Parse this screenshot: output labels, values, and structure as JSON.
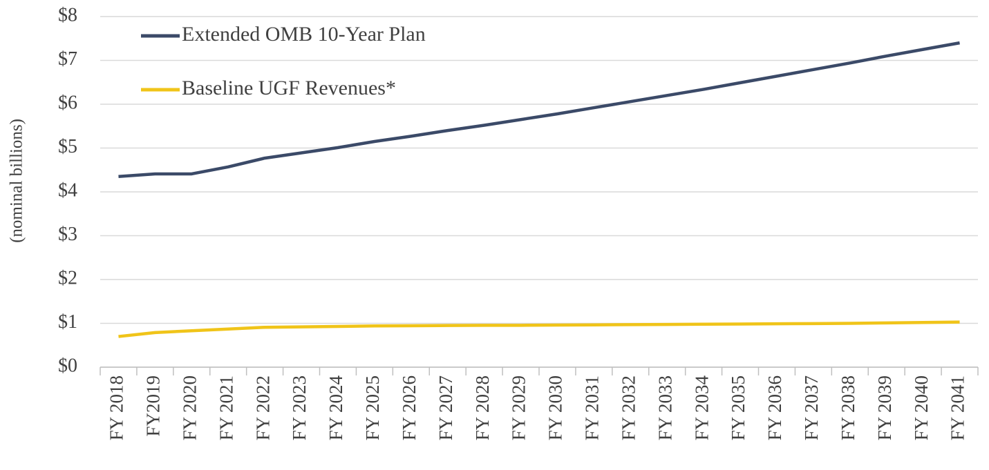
{
  "chart_data": {
    "type": "line",
    "y_label": "(nominal billions)",
    "categories": [
      "FY 2018",
      "FY2019",
      "FY 2020",
      "FY 2021",
      "FY 2022",
      "FY 2023",
      "FY 2024",
      "FY 2025",
      "FY 2026",
      "FY 2027",
      "FY 2028",
      "FY 2029",
      "FY 2030",
      "FY 2031",
      "FY 2032",
      "FY 2033",
      "FY 2034",
      "FY 2035",
      "FY 2036",
      "FY 2037",
      "FY 2038",
      "FY 2039",
      "FY 2040",
      "FY 2041"
    ],
    "series": [
      {
        "name": "Extended OMB 10-Year Plan",
        "color": "#3b4a68",
        "values": [
          4.35,
          4.41,
          4.41,
          4.57,
          4.77,
          4.89,
          5.01,
          5.15,
          5.27,
          5.4,
          5.52,
          5.65,
          5.78,
          5.92,
          6.06,
          6.2,
          6.34,
          6.49,
          6.64,
          6.79,
          6.94,
          7.1,
          7.25,
          7.4
        ]
      },
      {
        "name": "Baseline UGF Revenues*",
        "color": "#f0c419",
        "values": [
          0.7,
          0.79,
          0.83,
          0.87,
          0.91,
          0.92,
          0.93,
          0.94,
          0.945,
          0.95,
          0.955,
          0.955,
          0.96,
          0.965,
          0.97,
          0.975,
          0.98,
          0.985,
          0.99,
          0.995,
          1.0,
          1.01,
          1.02,
          1.03
        ]
      }
    ],
    "ylim": [
      0,
      8
    ],
    "yticks": [
      {
        "value": 0,
        "label": "$0"
      },
      {
        "value": 1,
        "label": "$1"
      },
      {
        "value": 2,
        "label": "$2"
      },
      {
        "value": 3,
        "label": "$3"
      },
      {
        "value": 4,
        "label": "$4"
      },
      {
        "value": 5,
        "label": "$5"
      },
      {
        "value": 6,
        "label": "$6"
      },
      {
        "value": 7,
        "label": "$7"
      },
      {
        "value": 8,
        "label": "$8"
      }
    ],
    "grid": true
  }
}
